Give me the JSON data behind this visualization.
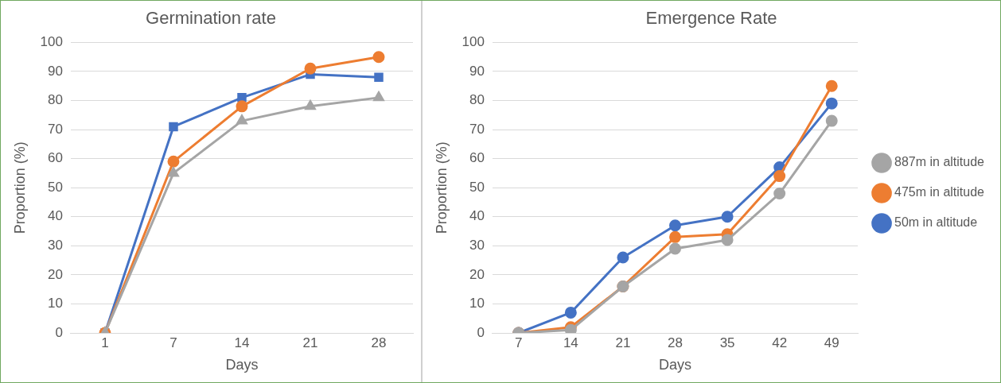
{
  "chart_data": [
    {
      "type": "line",
      "title": "Germination rate",
      "xlabel": "Days",
      "ylabel": "Proportion (%)",
      "categories": [
        "1",
        "7",
        "14",
        "21",
        "28"
      ],
      "ylim": [
        0,
        100
      ],
      "yticks": [
        0,
        10,
        20,
        30,
        40,
        50,
        60,
        70,
        80,
        90,
        100
      ],
      "grid": "y",
      "legend": false,
      "series": [
        {
          "color": "#4472c4",
          "marker": "square",
          "values": [
            0,
            71,
            81,
            89,
            88
          ]
        },
        {
          "color": "#ed7d31",
          "marker": "circle",
          "values": [
            0,
            59,
            78,
            91,
            95
          ]
        },
        {
          "color": "#a5a5a5",
          "marker": "triangle",
          "values": [
            0,
            55,
            73,
            78,
            81
          ]
        }
      ]
    },
    {
      "type": "line",
      "title": "Emergence Rate",
      "xlabel": "Days",
      "ylabel": "Proportion (%)",
      "categories": [
        "7",
        "14",
        "21",
        "28",
        "35",
        "42",
        "49"
      ],
      "ylim": [
        0,
        100
      ],
      "yticks": [
        0,
        10,
        20,
        30,
        40,
        50,
        60,
        70,
        80,
        90,
        100
      ],
      "grid": "y",
      "legend": "right",
      "marker": "circle",
      "series": [
        {
          "name": "50m in altitude",
          "color": "#4472c4",
          "values": [
            0,
            7,
            26,
            37,
            40,
            57,
            79
          ]
        },
        {
          "name": "475m in altitude",
          "color": "#ed7d31",
          "values": [
            0,
            2,
            16,
            33,
            34,
            54,
            85
          ]
        },
        {
          "name": "887m in altitude",
          "color": "#a5a5a5",
          "values": [
            0,
            1,
            16,
            29,
            32,
            48,
            73
          ]
        }
      ]
    }
  ]
}
